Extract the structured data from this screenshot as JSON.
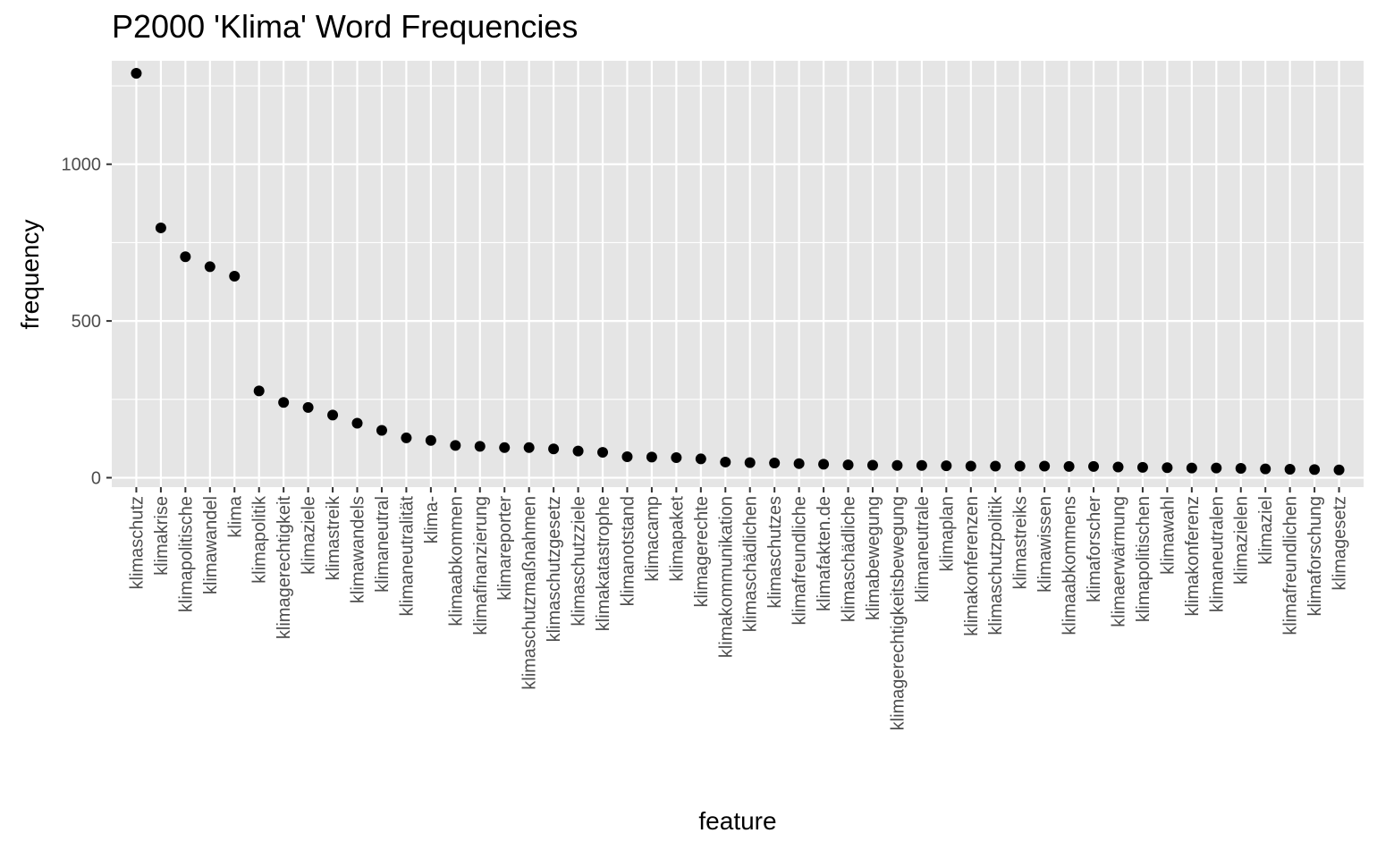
{
  "chart_data": {
    "type": "scatter",
    "title": "P2000 'Klima' Word Frequencies",
    "xlabel": "feature",
    "ylabel": "frequency",
    "ylim": [
      -30,
      1330
    ],
    "yticks": [
      0,
      500,
      1000
    ],
    "grid": true,
    "background": "#e5e5e5",
    "grid_color": "#ffffff",
    "point_color": "#000000",
    "categories": [
      "klimaschutz",
      "klimakrise",
      "klimapolitische",
      "klimawandel",
      "klima",
      "klimapolitik",
      "klimagerechtigkeit",
      "klimaziele",
      "klimastreik",
      "klimawandels",
      "klimaneutral",
      "klimaneutralität",
      "klima-",
      "klimaabkommen",
      "klimafinanzierung",
      "klimareporter",
      "klimaschutzmaßnahmen",
      "klimaschutzgesetz",
      "klimaschutzziele",
      "klimakatastrophe",
      "klimanotstand",
      "klimacamp",
      "klimapaket",
      "klimagerechte",
      "klimakommunikation",
      "klimaschädlichen",
      "klimaschutzes",
      "klimafreundliche",
      "klimafakten.de",
      "klimaschädliche",
      "klimabewegung",
      "klimagerechtigkeitsbewegung",
      "klimaneutrale",
      "klimaplan",
      "klimakonferenzen",
      "klimaschutzpolitik",
      "klimastreiks",
      "klimawissen",
      "klimaabkommens",
      "klimaforscher",
      "klimaerwärmung",
      "klimapolitischen",
      "klimawahl",
      "klimakonferenz",
      "klimaneutralen",
      "klimazielen",
      "klimaziel",
      "klimafreundlichen",
      "klimaforschung",
      "klimagesetz"
    ],
    "values": [
      1290,
      797,
      705,
      673,
      643,
      277,
      240,
      224,
      200,
      174,
      151,
      127,
      119,
      103,
      100,
      96,
      96,
      92,
      85,
      81,
      67,
      66,
      64,
      60,
      50,
      48,
      47,
      45,
      43,
      41,
      40,
      39,
      39,
      38,
      37,
      37,
      37,
      37,
      36,
      36,
      34,
      33,
      32,
      31,
      31,
      30,
      28,
      27,
      26,
      25
    ]
  }
}
